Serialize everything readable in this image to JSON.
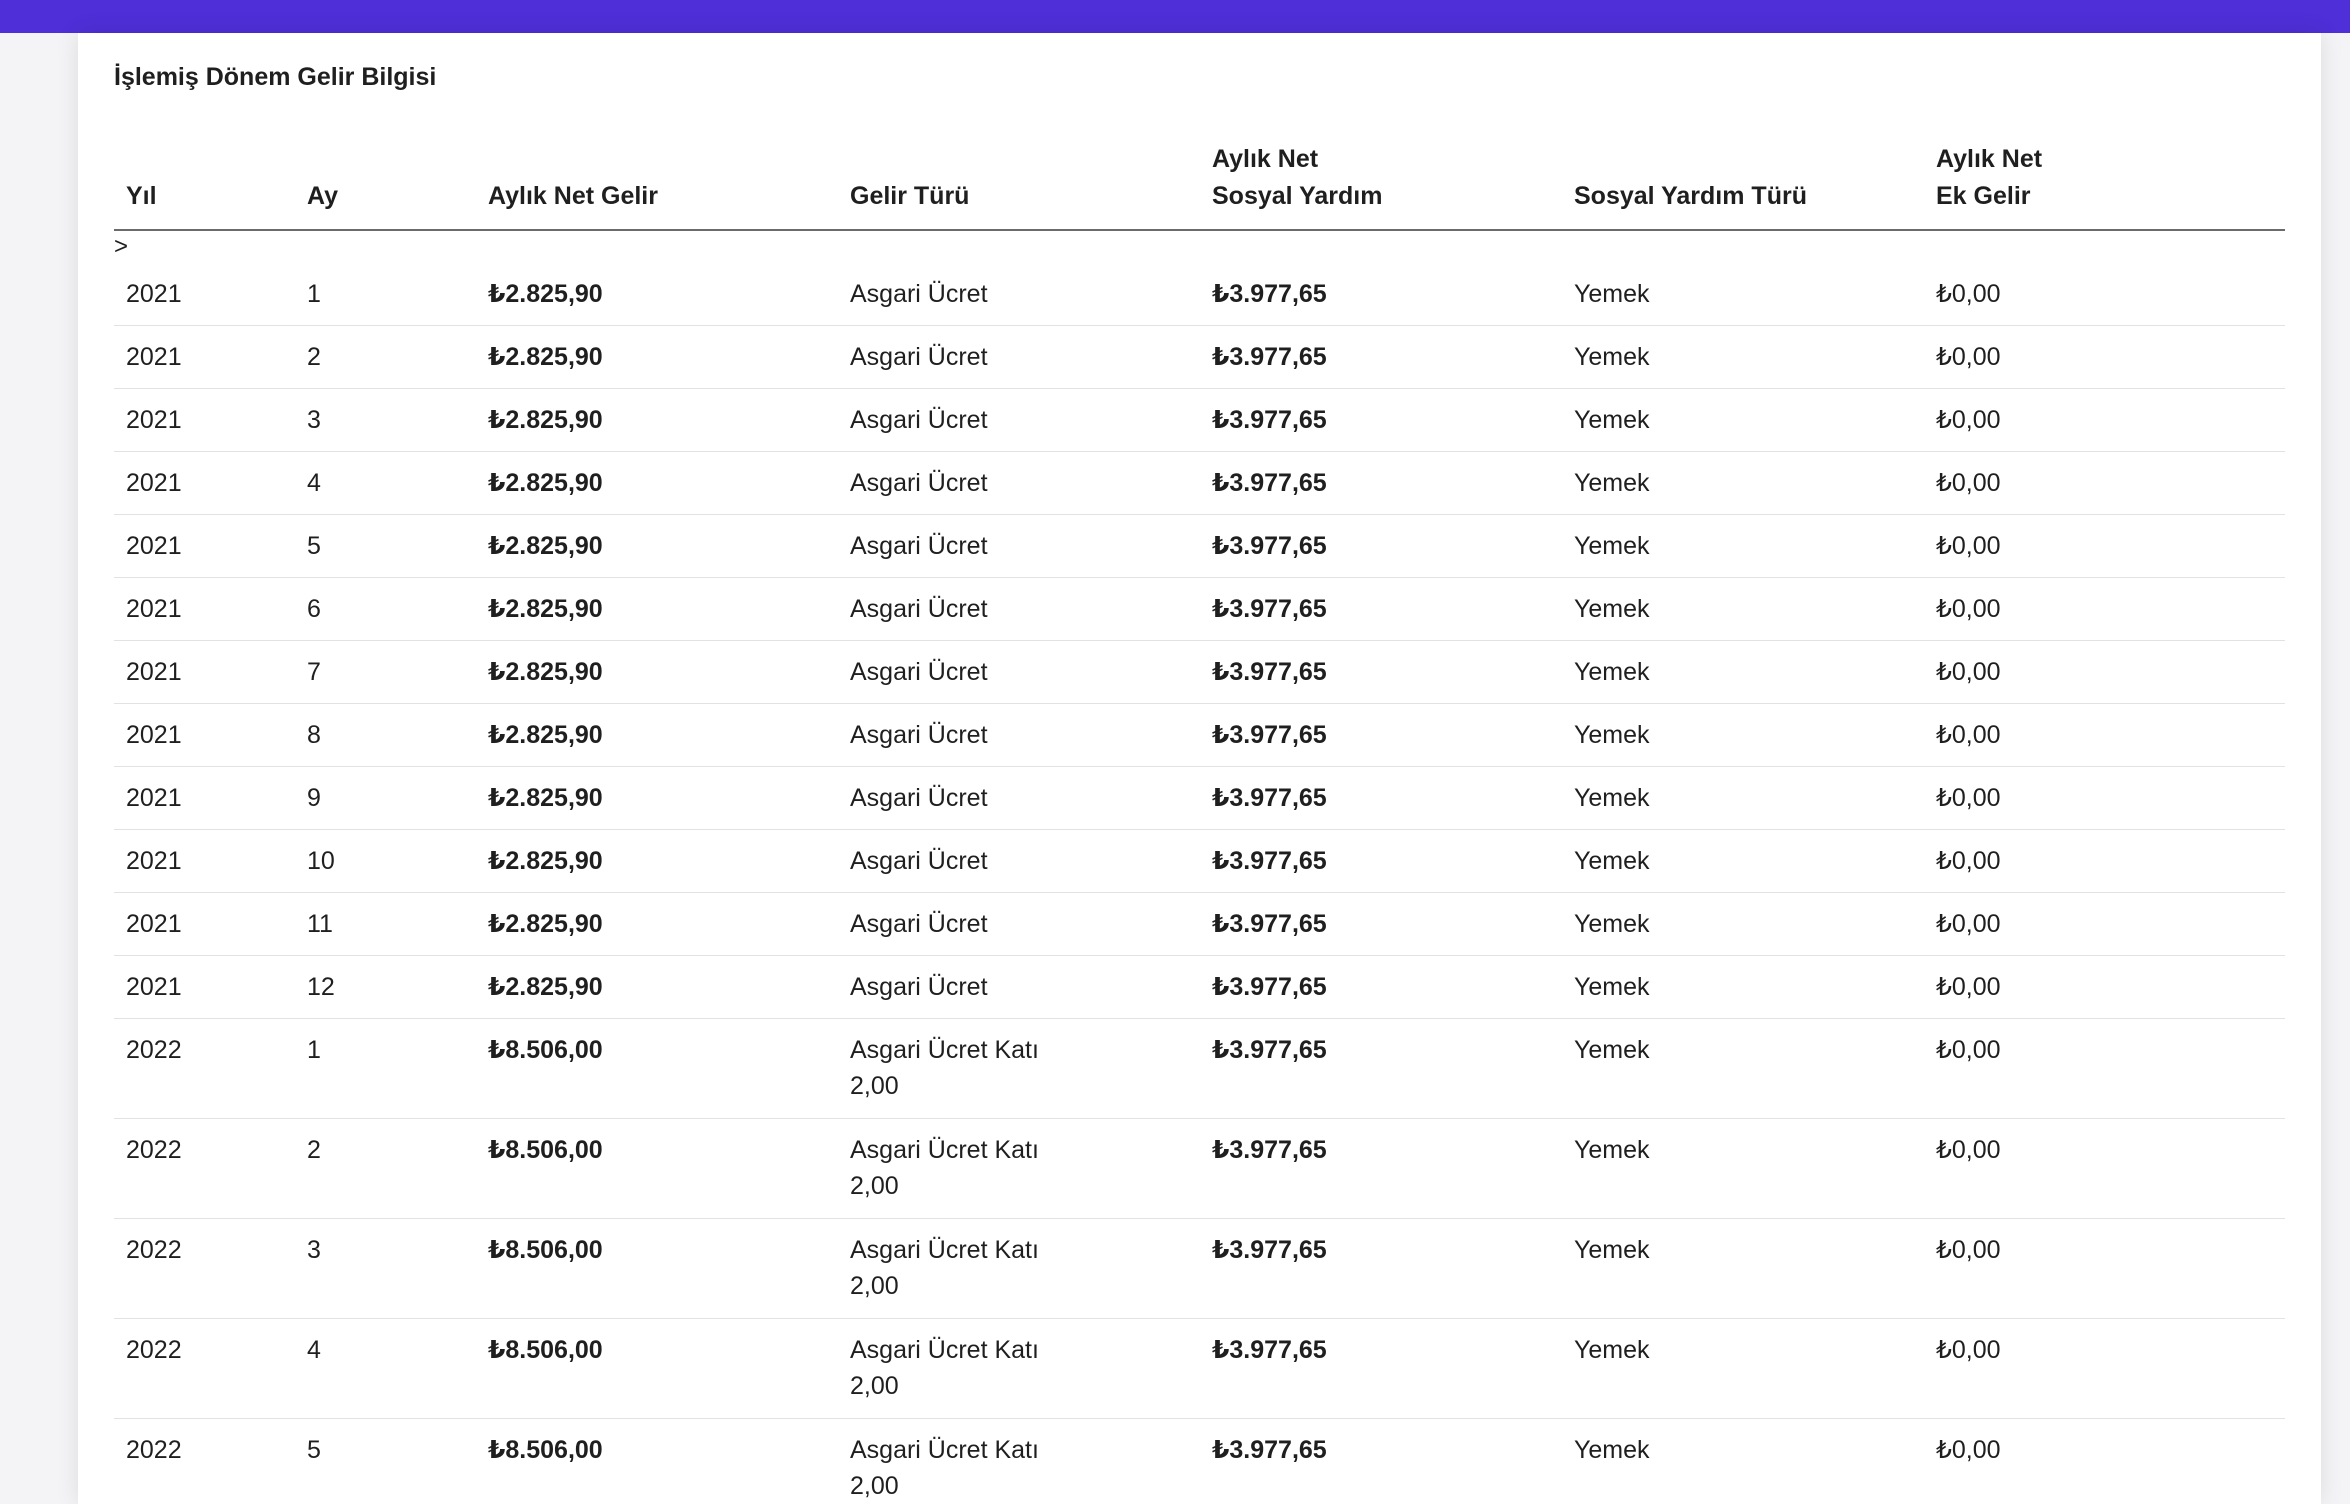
{
  "section_title": "İşlemiş Dönem Gelir Bilgisi",
  "columns": {
    "yil": "Yıl",
    "ay": "Ay",
    "aylik_net_gelir": "Aylık Net Gelir",
    "gelir_turu": "Gelir Türü",
    "aylik_net_sosyal_yardim": "Aylık Net\nSosyal Yardım",
    "sosyal_yardim_turu": "Sosyal Yardım Türü",
    "aylik_net_ek_gelir": "Aylık Net\nEk Gelir"
  },
  "expander_label": ">",
  "rows": [
    {
      "yil": "2021",
      "ay": "1",
      "net_gelir": "₺2.825,90",
      "gelir_turu": "Asgari Ücret",
      "sosyal_yardim": "₺3.977,65",
      "sosyal_yardim_turu": "Yemek",
      "ek_gelir": "₺0,00"
    },
    {
      "yil": "2021",
      "ay": "2",
      "net_gelir": "₺2.825,90",
      "gelir_turu": "Asgari Ücret",
      "sosyal_yardim": "₺3.977,65",
      "sosyal_yardim_turu": "Yemek",
      "ek_gelir": "₺0,00"
    },
    {
      "yil": "2021",
      "ay": "3",
      "net_gelir": "₺2.825,90",
      "gelir_turu": "Asgari Ücret",
      "sosyal_yardim": "₺3.977,65",
      "sosyal_yardim_turu": "Yemek",
      "ek_gelir": "₺0,00"
    },
    {
      "yil": "2021",
      "ay": "4",
      "net_gelir": "₺2.825,90",
      "gelir_turu": "Asgari Ücret",
      "sosyal_yardim": "₺3.977,65",
      "sosyal_yardim_turu": "Yemek",
      "ek_gelir": "₺0,00"
    },
    {
      "yil": "2021",
      "ay": "5",
      "net_gelir": "₺2.825,90",
      "gelir_turu": "Asgari Ücret",
      "sosyal_yardim": "₺3.977,65",
      "sosyal_yardim_turu": "Yemek",
      "ek_gelir": "₺0,00"
    },
    {
      "yil": "2021",
      "ay": "6",
      "net_gelir": "₺2.825,90",
      "gelir_turu": "Asgari Ücret",
      "sosyal_yardim": "₺3.977,65",
      "sosyal_yardim_turu": "Yemek",
      "ek_gelir": "₺0,00"
    },
    {
      "yil": "2021",
      "ay": "7",
      "net_gelir": "₺2.825,90",
      "gelir_turu": "Asgari Ücret",
      "sosyal_yardim": "₺3.977,65",
      "sosyal_yardim_turu": "Yemek",
      "ek_gelir": "₺0,00"
    },
    {
      "yil": "2021",
      "ay": "8",
      "net_gelir": "₺2.825,90",
      "gelir_turu": "Asgari Ücret",
      "sosyal_yardim": "₺3.977,65",
      "sosyal_yardim_turu": "Yemek",
      "ek_gelir": "₺0,00"
    },
    {
      "yil": "2021",
      "ay": "9",
      "net_gelir": "₺2.825,90",
      "gelir_turu": "Asgari Ücret",
      "sosyal_yardim": "₺3.977,65",
      "sosyal_yardim_turu": "Yemek",
      "ek_gelir": "₺0,00"
    },
    {
      "yil": "2021",
      "ay": "10",
      "net_gelir": "₺2.825,90",
      "gelir_turu": "Asgari Ücret",
      "sosyal_yardim": "₺3.977,65",
      "sosyal_yardim_turu": "Yemek",
      "ek_gelir": "₺0,00"
    },
    {
      "yil": "2021",
      "ay": "11",
      "net_gelir": "₺2.825,90",
      "gelir_turu": "Asgari Ücret",
      "sosyal_yardim": "₺3.977,65",
      "sosyal_yardim_turu": "Yemek",
      "ek_gelir": "₺0,00"
    },
    {
      "yil": "2021",
      "ay": "12",
      "net_gelir": "₺2.825,90",
      "gelir_turu": "Asgari Ücret",
      "sosyal_yardim": "₺3.977,65",
      "sosyal_yardim_turu": "Yemek",
      "ek_gelir": "₺0,00"
    },
    {
      "yil": "2022",
      "ay": "1",
      "net_gelir": "₺8.506,00",
      "gelir_turu": "Asgari Ücret Katı\n2,00",
      "sosyal_yardim": "₺3.977,65",
      "sosyal_yardim_turu": "Yemek",
      "ek_gelir": "₺0,00"
    },
    {
      "yil": "2022",
      "ay": "2",
      "net_gelir": "₺8.506,00",
      "gelir_turu": "Asgari Ücret Katı\n2,00",
      "sosyal_yardim": "₺3.977,65",
      "sosyal_yardim_turu": "Yemek",
      "ek_gelir": "₺0,00"
    },
    {
      "yil": "2022",
      "ay": "3",
      "net_gelir": "₺8.506,00",
      "gelir_turu": "Asgari Ücret Katı\n2,00",
      "sosyal_yardim": "₺3.977,65",
      "sosyal_yardim_turu": "Yemek",
      "ek_gelir": "₺0,00"
    },
    {
      "yil": "2022",
      "ay": "4",
      "net_gelir": "₺8.506,00",
      "gelir_turu": "Asgari Ücret Katı\n2,00",
      "sosyal_yardim": "₺3.977,65",
      "sosyal_yardim_turu": "Yemek",
      "ek_gelir": "₺0,00"
    },
    {
      "yil": "2022",
      "ay": "5",
      "net_gelir": "₺8.506,00",
      "gelir_turu": "Asgari Ücret Katı\n2,00",
      "sosyal_yardim": "₺3.977,65",
      "sosyal_yardim_turu": "Yemek",
      "ek_gelir": "₺0,00"
    }
  ],
  "colors": {
    "topbar": "#4e2fd8",
    "background": "#f4f4f6",
    "panel": "#ffffff",
    "header_rule": "#6b6b6b",
    "row_rule": "#e2e2e4"
  }
}
